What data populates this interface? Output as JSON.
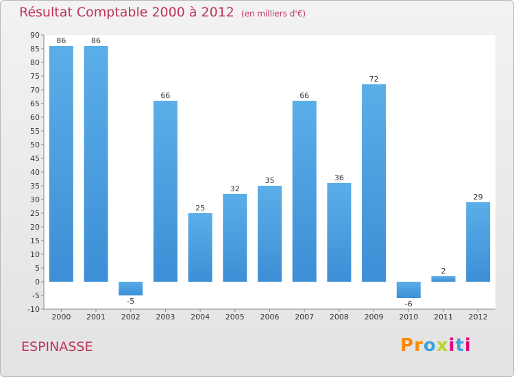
{
  "header": {
    "title": "Résultat Comptable 2000 à 2012",
    "subtitle": "(en milliers d'€)"
  },
  "footer": {
    "commune": "ESPINASSE",
    "logo_text": "Proxiti"
  },
  "colors": {
    "bar": "#3d8fd6",
    "bar_light": "#5aaee8",
    "title": "#c0335a",
    "logo": [
      "#ff8a00",
      "#ff8a00",
      "#3aa5dc",
      "#b7d32d",
      "#e2007a",
      "#3aa5dc",
      "#e2007a"
    ]
  },
  "chart_data": {
    "type": "bar",
    "title": "Résultat Comptable 2000 à 2012",
    "xlabel": "",
    "ylabel": "",
    "categories": [
      "2000",
      "2001",
      "2002",
      "2003",
      "2004",
      "2005",
      "2006",
      "2007",
      "2008",
      "2009",
      "2010",
      "2011",
      "2012"
    ],
    "values": [
      86,
      86,
      -5,
      66,
      25,
      32,
      35,
      66,
      36,
      72,
      -6,
      2,
      29
    ],
    "ylim": [
      -10,
      90
    ],
    "ytick_step": 5,
    "grid": false
  }
}
